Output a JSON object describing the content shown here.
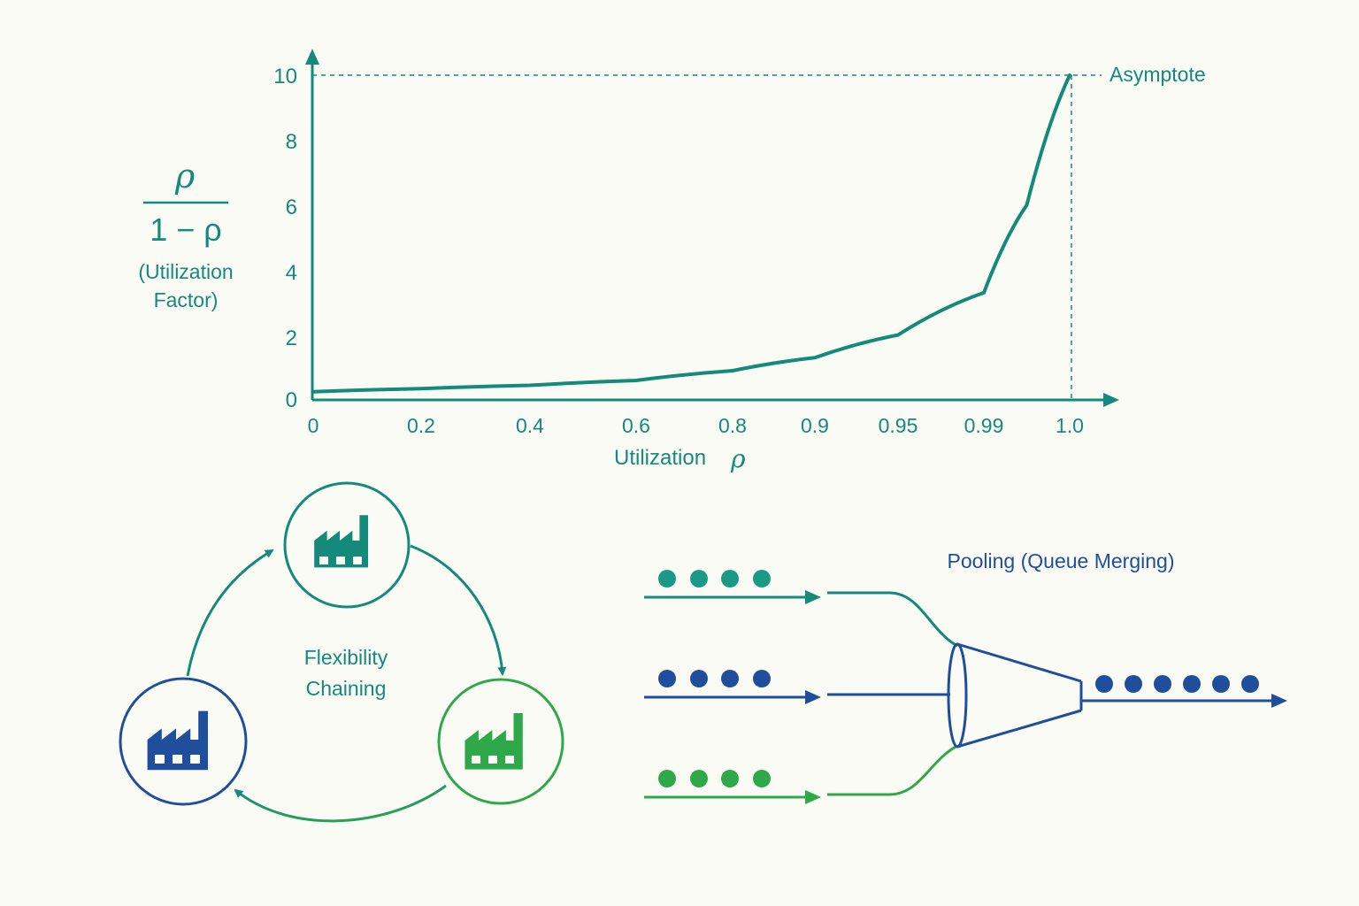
{
  "colors": {
    "teal": "#138a7a",
    "blue": "#1f4f9c",
    "green": "#2fa84a",
    "background": "#fbfbf6"
  },
  "chart_data": {
    "type": "line",
    "function": "rho / (1 - rho)",
    "ylabel": {
      "numerator": "ρ",
      "denominator": "1 − ρ",
      "caption_line1": "(Utilization",
      "caption_line2": "Factor)"
    },
    "xlabel": {
      "text": "Utilization",
      "symbol": "ρ"
    },
    "x_ticks": [
      "0",
      "0.2",
      "0.4",
      "0.6",
      "0.8",
      "0.9",
      "0.95",
      "0.99",
      "1.0"
    ],
    "y_ticks": [
      "0",
      "2",
      "4",
      "6",
      "8",
      "10"
    ],
    "ylim": [
      0,
      10
    ],
    "asymptote": {
      "x": 1.0,
      "y": 10,
      "label": "Asymptote"
    },
    "series": [
      {
        "points": [
          [
            0,
            0.25
          ],
          [
            0.2,
            0.35
          ],
          [
            0.4,
            0.45
          ],
          [
            0.6,
            0.6
          ],
          [
            0.8,
            0.9
          ],
          [
            0.9,
            1.3
          ],
          [
            0.95,
            2.0
          ],
          [
            0.99,
            3.3
          ],
          [
            0.995,
            6.0
          ],
          [
            1.0,
            10
          ]
        ]
      }
    ]
  },
  "flexibility": {
    "label_line1": "Flexibility",
    "label_line2": "Chaining",
    "icons": [
      "factory-icon",
      "factory-icon",
      "factory-icon"
    ]
  },
  "pooling": {
    "title": "Pooling (Queue Merging)",
    "input_queues": [
      {
        "color": "teal",
        "dots": 4
      },
      {
        "color": "blue",
        "dots": 4
      },
      {
        "color": "green",
        "dots": 4
      }
    ],
    "output_dots": 6
  }
}
